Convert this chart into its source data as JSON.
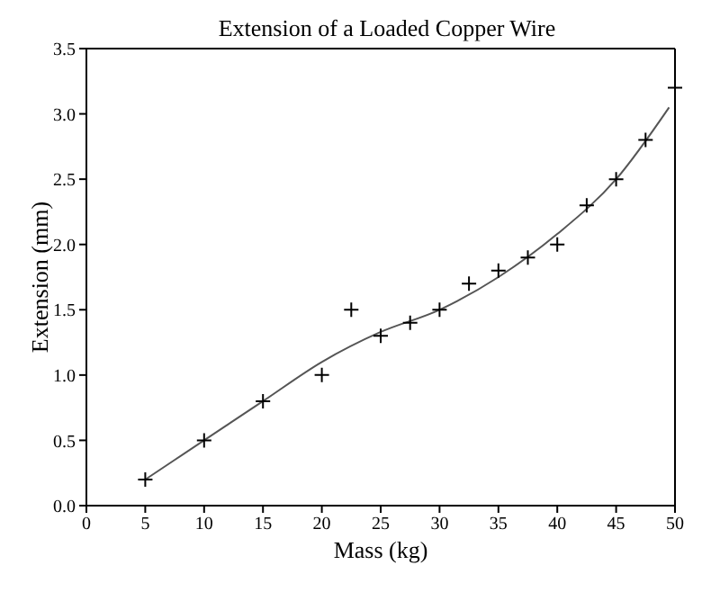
{
  "chart_data": {
    "type": "scatter",
    "title": "Extension of a Loaded Copper Wire",
    "xlabel": "Mass (kg)",
    "ylabel": "Extension (mm)",
    "xlim": [
      0,
      50
    ],
    "xticks": [
      0,
      5,
      10,
      15,
      20,
      25,
      30,
      35,
      40,
      45,
      50
    ],
    "ylim": [
      0,
      3.5
    ],
    "yticks": [
      {
        "value": 0,
        "label": "0.0"
      },
      {
        "value": 0.5,
        "label": "0.5"
      },
      {
        "value": 1,
        "label": "1.0"
      },
      {
        "value": 1.5,
        "label": "1.5"
      },
      {
        "value": 2,
        "label": "2.0"
      },
      {
        "value": 2.5,
        "label": "2.5"
      },
      {
        "value": 3,
        "label": "3.0"
      },
      {
        "value": 3.5,
        "label": "3.5"
      }
    ],
    "marker": "cross",
    "legend": false,
    "series": [
      {
        "color": "#000000",
        "x": [
          5,
          10,
          15,
          20,
          22.5,
          25,
          27.5,
          30,
          32.5,
          35,
          37.5,
          40,
          42.5,
          45,
          47.5,
          50
        ],
        "values": [
          0.2,
          0.5,
          0.8,
          1.0,
          1.5,
          1.3,
          1.4,
          1.5,
          1.7,
          1.8,
          1.9,
          2.0,
          2.3,
          2.5,
          2.8,
          3.2
        ]
      },
      {
        "type": "line",
        "color": "#555555",
        "marker": "none",
        "x": [
          5,
          10,
          15,
          20,
          25,
          30,
          35,
          40,
          45,
          49.5
        ],
        "values": [
          0.2,
          0.5,
          0.8,
          1.1,
          1.33,
          1.5,
          1.75,
          2.08,
          2.5,
          3.05
        ]
      }
    ]
  }
}
